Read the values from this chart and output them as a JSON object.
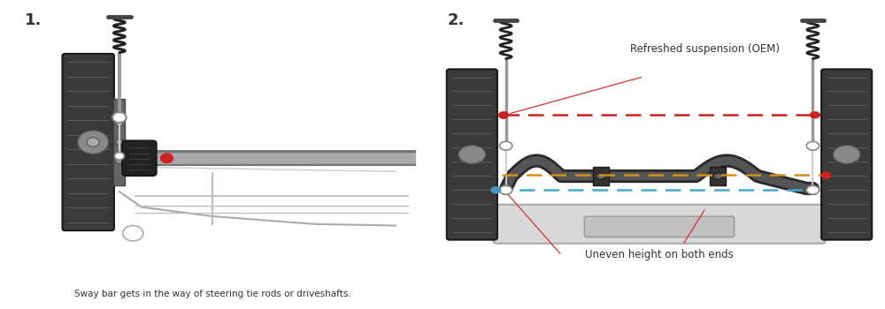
{
  "bg_color": "#ffffff",
  "text_color": "#333333",
  "label1_num": "1.",
  "label2_num": "2.",
  "caption1": "Sway bar gets in the way of steering tie rods or driveshafts.",
  "annotation_oem": "Refreshed suspension (OEM)",
  "annotation_uneven": "Uneven height on both ends",
  "red_dot_color": "#cc2222",
  "blue_dot_color": "#4499bb",
  "dashed_red": "#cc2222",
  "dashed_orange": "#d4901a",
  "dashed_blue": "#44aacc",
  "tire_dark": "#3a3a3a",
  "tire_edge": "#1a1a1a",
  "tread_color": "#666666",
  "bracket_color": "#666666",
  "spring_color": "#222222",
  "strut_shaft": "#888888",
  "link_color": "#bbbbbb",
  "sway_bar_dark": "#444444",
  "sway_bar_mid": "#666666",
  "subframe_fill": "#d8d8d8",
  "subframe_edge": "#aaaaaa",
  "boot_color": "#222222",
  "endlink_color": "#cccccc",
  "annotation_line_color": "#cc3333"
}
